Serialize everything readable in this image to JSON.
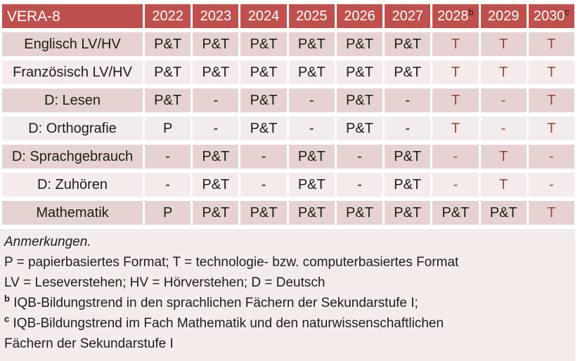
{
  "colors": {
    "header_bg": "#C0504D",
    "header_text": "#FFFFFF",
    "band_dark": "#E6D3D1",
    "band_light": "#F3ECEA",
    "tech_red": "#A0443E",
    "body_text": "#1D1D1D"
  },
  "table": {
    "corner_label": "VERA-8",
    "columns": [
      {
        "label": "2022",
        "sup": ""
      },
      {
        "label": "2023",
        "sup": ""
      },
      {
        "label": "2024",
        "sup": ""
      },
      {
        "label": "2025",
        "sup": ""
      },
      {
        "label": "2026",
        "sup": ""
      },
      {
        "label": "2027",
        "sup": ""
      },
      {
        "label": "2028",
        "sup": "b"
      },
      {
        "label": "2029",
        "sup": ""
      },
      {
        "label": "2030",
        "sup": "c"
      }
    ],
    "rows": [
      {
        "label": "Englisch LV/HV",
        "values": [
          "P&T",
          "P&T",
          "P&T",
          "P&T",
          "P&T",
          "P&T",
          "T",
          "T",
          "T"
        ]
      },
      {
        "label": "Französisch LV/HV",
        "values": [
          "P&T",
          "P&T",
          "P&T",
          "P&T",
          "P&T",
          "P&T",
          "T",
          "T",
          "T"
        ]
      },
      {
        "label": "D: Lesen",
        "values": [
          "P&T",
          "-",
          "P&T",
          "-",
          "P&T",
          "-",
          "T",
          "-",
          "T"
        ]
      },
      {
        "label": "D: Orthografie",
        "values": [
          "P",
          "-",
          "P&T",
          "-",
          "P&T",
          "-",
          "T",
          "-",
          "T"
        ]
      },
      {
        "label": "D: Sprachgebrauch",
        "values": [
          "-",
          "P&T",
          "-",
          "P&T",
          "-",
          "P&T",
          "-",
          "T",
          "-"
        ]
      },
      {
        "label": "D: Zuhören",
        "values": [
          "-",
          "P&T",
          "-",
          "P&T",
          "-",
          "P&T",
          "-",
          "T",
          "-"
        ]
      },
      {
        "label": "Mathematik",
        "values": [
          "P",
          "P&T",
          "P&T",
          "P&T",
          "P&T",
          "P&T",
          "P&T",
          "P&T",
          "T"
        ]
      }
    ],
    "red_text_from_column_index": 6
  },
  "notes": {
    "heading": "Anmerkungen.",
    "line_formats": "P = papierbasiertes Format; T = technologie- bzw. computerbasiertes Format",
    "line_abbreviations": "LV = Leseverstehen; HV = Hörverstehen; D = Deutsch",
    "note_b_sup": "b",
    "note_b_text": "IQB-Bildungstrend in den sprachlichen Fächern der Sekundarstufe I;",
    "note_c_sup": "c",
    "note_c_text": "IQB-Bildungstrend im Fach Mathematik und den naturwissenschaftlichen Fächern der Sekundarstufe I"
  }
}
